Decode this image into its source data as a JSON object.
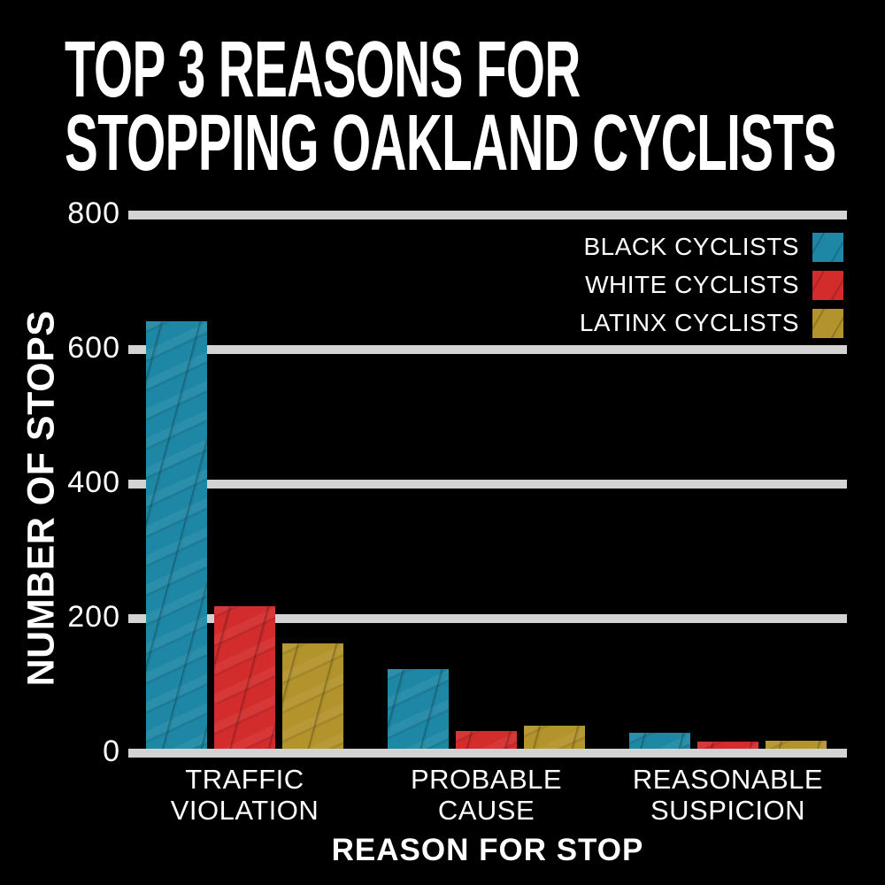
{
  "title": {
    "line1": "TOP 3 REASONS FOR",
    "line2": "STOPPING OAKLAND CYCLISTS"
  },
  "chart_data": {
    "type": "bar",
    "title": "TOP 3 REASONS FOR STOPPING OAKLAND CYCLISTS",
    "categories": [
      "TRAFFIC VIOLATION",
      "PROBABLE CAUSE",
      "REASONABLE SUSPICION"
    ],
    "category_label_lines": [
      [
        "TRAFFIC",
        "VIOLATION"
      ],
      [
        "PROBABLE",
        "CAUSE"
      ],
      [
        "REASONABLE",
        "SUSPICION"
      ]
    ],
    "series": [
      {
        "name": "BLACK CYCLISTS",
        "color": "#1e87a5",
        "values": [
          635,
          118,
          24
        ]
      },
      {
        "name": "WHITE CYCLISTS",
        "color": "#d32c2c",
        "values": [
          212,
          26,
          10
        ]
      },
      {
        "name": "LATINX CYCLISTS",
        "color": "#b3932c",
        "values": [
          157,
          34,
          12
        ]
      }
    ],
    "xlabel": "REASON FOR STOP",
    "ylabel": "NUMBER OF STOPS",
    "ylim": [
      0,
      800
    ],
    "yticks": [
      800,
      600,
      400,
      200,
      0
    ],
    "grid": true,
    "gridline_color": "#d3d3d3",
    "legend_position": "top-right",
    "background_color": "#000000",
    "text_color": "#ffffff"
  }
}
